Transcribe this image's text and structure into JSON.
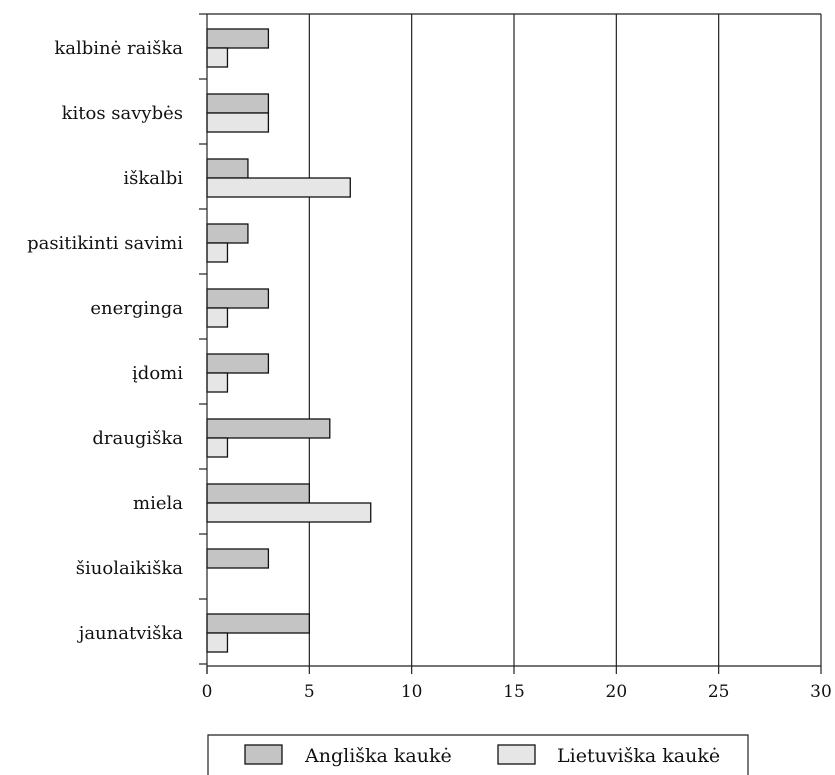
{
  "chart_data": {
    "type": "bar",
    "orientation": "horizontal",
    "categories": [
      "kalbinė raiška",
      "kitos savybės",
      "iškalbi",
      "pasitikinti savimi",
      "energinga",
      "įdomi",
      "draugiška",
      "miela",
      "šiuolaikiška",
      "jaunatviška"
    ],
    "series": [
      {
        "name": "Angliška kaukė",
        "color": "#c4c4c4",
        "values": [
          3,
          3,
          2,
          2,
          3,
          3,
          6,
          5,
          3,
          5
        ]
      },
      {
        "name": "Lietuviška kaukė",
        "color": "#e6e6e6",
        "values": [
          1,
          3,
          7,
          1,
          1,
          1,
          1,
          8,
          0,
          1
        ]
      }
    ],
    "xlim": [
      0,
      30
    ],
    "xticks": [
      0,
      5,
      10,
      15,
      20,
      25,
      30
    ],
    "xlabel": "",
    "ylabel": "",
    "title": "",
    "grid": "vertical",
    "legend_position": "bottom"
  }
}
